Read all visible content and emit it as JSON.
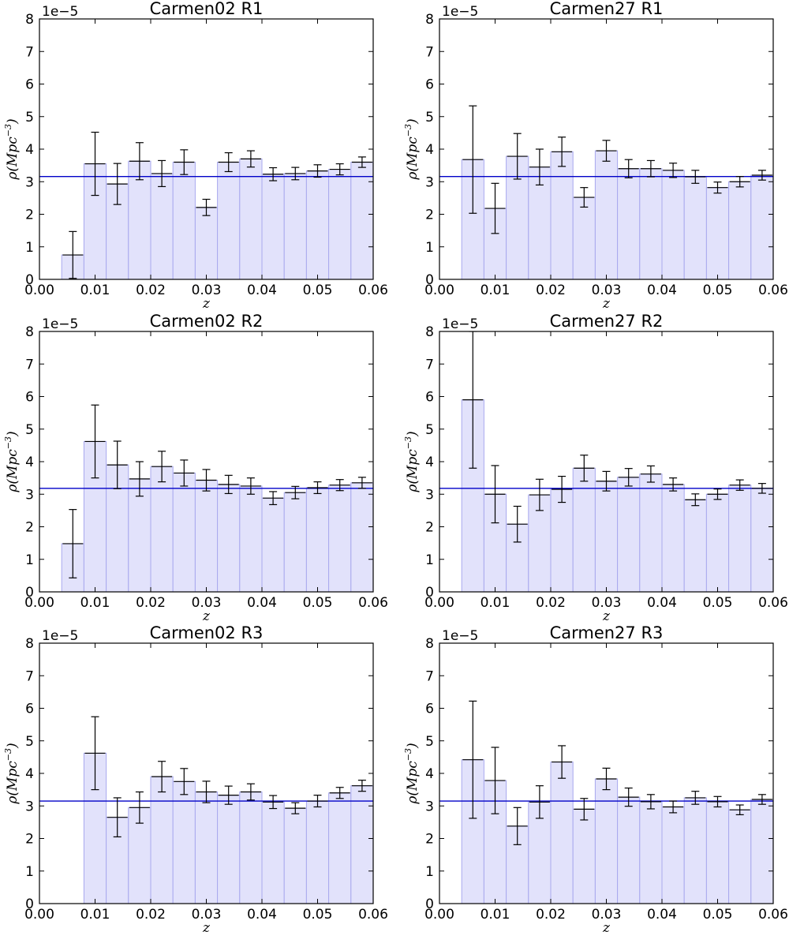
{
  "colors": {
    "bar_fill": "#e2e2fb",
    "bar_edge": "#a9a9ee",
    "mean_line": "#0000c8",
    "errorbar": "#000000",
    "axes": "#000000"
  },
  "chart_data": [
    {
      "type": "bar",
      "title": "Carmen02 R1",
      "xlabel": "z",
      "ylabel": "ρ(Mpc",
      "ylabel_exponent": "−3",
      "ylabel_close": ")",
      "y_offset_label": "1e−5",
      "xlim": [
        0.0,
        0.06
      ],
      "ylim": [
        0,
        8
      ],
      "xticks": [
        "0.00",
        "0.01",
        "0.02",
        "0.03",
        "0.04",
        "0.05",
        "0.06"
      ],
      "yticks": [
        "0",
        "1",
        "2",
        "3",
        "4",
        "5",
        "6",
        "7",
        "8"
      ],
      "bin_width": 0.004,
      "bin_starts": [
        0.004,
        0.008,
        0.012,
        0.016,
        0.02,
        0.024,
        0.028,
        0.032,
        0.036,
        0.04,
        0.044,
        0.048,
        0.052,
        0.056
      ],
      "values": [
        0.75,
        3.55,
        2.93,
        3.63,
        3.25,
        3.6,
        2.21,
        3.6,
        3.7,
        3.23,
        3.25,
        3.33,
        3.38,
        3.6
      ],
      "errors": [
        0.72,
        0.97,
        0.63,
        0.57,
        0.4,
        0.38,
        0.25,
        0.29,
        0.25,
        0.2,
        0.19,
        0.19,
        0.17,
        0.16
      ],
      "mean": 3.16
    },
    {
      "type": "bar",
      "title": "Carmen27 R1",
      "xlabel": "z",
      "ylabel": "ρ(Mpc",
      "ylabel_exponent": "−3",
      "ylabel_close": ")",
      "y_offset_label": "1e−5",
      "xlim": [
        0.0,
        0.06
      ],
      "ylim": [
        0,
        8
      ],
      "xticks": [
        "0.00",
        "0.01",
        "0.02",
        "0.03",
        "0.04",
        "0.05",
        "0.06"
      ],
      "yticks": [
        "0",
        "1",
        "2",
        "3",
        "4",
        "5",
        "6",
        "7",
        "8"
      ],
      "bin_width": 0.004,
      "bin_starts": [
        0.004,
        0.008,
        0.012,
        0.016,
        0.02,
        0.024,
        0.028,
        0.032,
        0.036,
        0.04,
        0.044,
        0.048,
        0.052,
        0.056
      ],
      "values": [
        3.68,
        2.18,
        3.78,
        3.45,
        3.92,
        2.52,
        3.95,
        3.4,
        3.4,
        3.35,
        3.15,
        2.82,
        3.0,
        3.2
      ],
      "errors": [
        1.65,
        0.77,
        0.7,
        0.55,
        0.45,
        0.3,
        0.32,
        0.28,
        0.25,
        0.22,
        0.2,
        0.17,
        0.16,
        0.15
      ],
      "mean": 3.16
    },
    {
      "type": "bar",
      "title": "Carmen02 R2",
      "xlabel": "z",
      "ylabel": "ρ(Mpc",
      "ylabel_exponent": "−3",
      "ylabel_close": ")",
      "y_offset_label": "1e−5",
      "xlim": [
        0.0,
        0.06
      ],
      "ylim": [
        0,
        8
      ],
      "xticks": [
        "0.00",
        "0.01",
        "0.02",
        "0.03",
        "0.04",
        "0.05",
        "0.06"
      ],
      "yticks": [
        "0",
        "1",
        "2",
        "3",
        "4",
        "5",
        "6",
        "7",
        "8"
      ],
      "bin_width": 0.004,
      "bin_starts": [
        0.004,
        0.008,
        0.012,
        0.016,
        0.02,
        0.024,
        0.028,
        0.032,
        0.036,
        0.04,
        0.044,
        0.048,
        0.052,
        0.056
      ],
      "values": [
        1.48,
        4.62,
        3.9,
        3.47,
        3.85,
        3.65,
        3.43,
        3.3,
        3.25,
        2.88,
        3.05,
        3.2,
        3.28,
        3.35
      ],
      "errors": [
        1.05,
        1.12,
        0.73,
        0.53,
        0.47,
        0.4,
        0.33,
        0.28,
        0.25,
        0.2,
        0.19,
        0.18,
        0.17,
        0.17
      ],
      "mean": 3.18
    },
    {
      "type": "bar",
      "title": "Carmen27 R2",
      "xlabel": "z",
      "ylabel": "ρ(Mpc",
      "ylabel_exponent": "−3",
      "ylabel_close": ")",
      "y_offset_label": "1e−5",
      "xlim": [
        0.0,
        0.06
      ],
      "ylim": [
        0,
        8
      ],
      "xticks": [
        "0.00",
        "0.01",
        "0.02",
        "0.03",
        "0.04",
        "0.05",
        "0.06"
      ],
      "yticks": [
        "0",
        "1",
        "2",
        "3",
        "4",
        "5",
        "6",
        "7",
        "8"
      ],
      "bin_width": 0.004,
      "bin_starts": [
        0.004,
        0.008,
        0.012,
        0.016,
        0.02,
        0.024,
        0.028,
        0.032,
        0.036,
        0.04,
        0.044,
        0.048,
        0.052,
        0.056
      ],
      "values": [
        5.9,
        3.0,
        2.08,
        2.98,
        3.15,
        3.8,
        3.4,
        3.52,
        3.62,
        3.3,
        2.83,
        3.0,
        3.28,
        3.18
      ],
      "errors": [
        2.1,
        0.88,
        0.55,
        0.48,
        0.4,
        0.4,
        0.3,
        0.27,
        0.25,
        0.2,
        0.18,
        0.16,
        0.16,
        0.15
      ],
      "mean": 3.18
    },
    {
      "type": "bar",
      "title": "Carmen02 R3",
      "xlabel": "z",
      "ylabel": "ρ(Mpc",
      "ylabel_exponent": "−3",
      "ylabel_close": ")",
      "y_offset_label": "1e−5",
      "xlim": [
        0.0,
        0.06
      ],
      "ylim": [
        0,
        8
      ],
      "xticks": [
        "0.00",
        "0.01",
        "0.02",
        "0.03",
        "0.04",
        "0.05",
        "0.06"
      ],
      "yticks": [
        "0",
        "1",
        "2",
        "3",
        "4",
        "5",
        "6",
        "7",
        "8"
      ],
      "bin_width": 0.004,
      "bin_starts": [
        0.008,
        0.012,
        0.016,
        0.02,
        0.024,
        0.028,
        0.032,
        0.036,
        0.04,
        0.044,
        0.048,
        0.052,
        0.056
      ],
      "values": [
        4.62,
        2.65,
        2.95,
        3.9,
        3.75,
        3.43,
        3.33,
        3.43,
        3.12,
        2.93,
        3.15,
        3.4,
        3.62
      ],
      "errors": [
        1.12,
        0.6,
        0.48,
        0.47,
        0.4,
        0.33,
        0.28,
        0.25,
        0.2,
        0.17,
        0.18,
        0.17,
        0.17
      ],
      "mean": 3.15
    },
    {
      "type": "bar",
      "title": "Carmen27 R3",
      "xlabel": "z",
      "ylabel": "ρ(Mpc",
      "ylabel_exponent": "−3",
      "ylabel_close": ")",
      "y_offset_label": "1e−5",
      "xlim": [
        0.0,
        0.06
      ],
      "ylim": [
        0,
        8
      ],
      "xticks": [
        "0.00",
        "0.01",
        "0.02",
        "0.03",
        "0.04",
        "0.05",
        "0.06"
      ],
      "yticks": [
        "0",
        "1",
        "2",
        "3",
        "4",
        "5",
        "6",
        "7",
        "8"
      ],
      "bin_width": 0.004,
      "bin_starts": [
        0.004,
        0.008,
        0.012,
        0.016,
        0.02,
        0.024,
        0.028,
        0.032,
        0.036,
        0.04,
        0.044,
        0.048,
        0.052,
        0.056
      ],
      "values": [
        4.42,
        3.78,
        2.38,
        3.12,
        4.35,
        2.9,
        3.83,
        3.27,
        3.13,
        2.97,
        3.25,
        3.13,
        2.88,
        3.2
      ],
      "errors": [
        1.8,
        1.02,
        0.57,
        0.5,
        0.5,
        0.33,
        0.33,
        0.28,
        0.22,
        0.18,
        0.2,
        0.16,
        0.15,
        0.15
      ],
      "mean": 3.15
    }
  ]
}
